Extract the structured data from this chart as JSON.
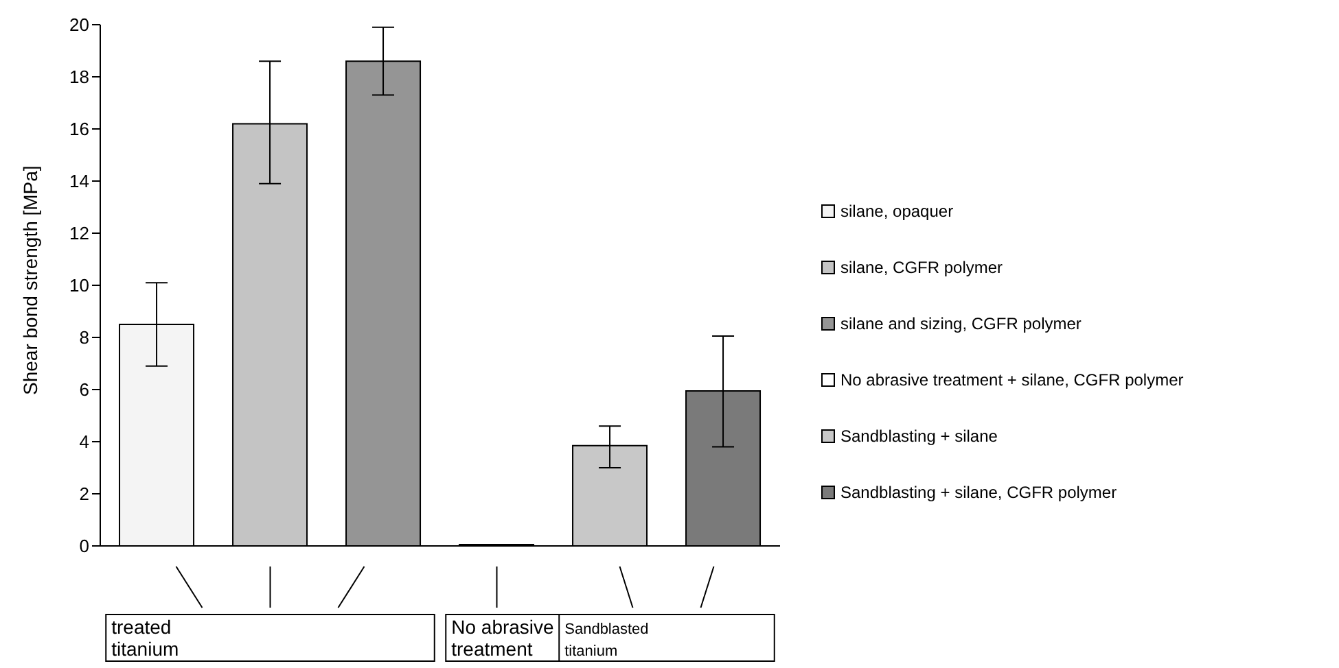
{
  "chart_data": {
    "type": "bar",
    "ylabel": "Shear bond strength [MPa]",
    "categories": [
      null,
      null,
      null,
      null,
      null,
      null
    ],
    "series": [
      {
        "name": "silane, opaquer",
        "color": "#f4f4f4",
        "values": [
          8.5,
          null,
          null,
          null,
          null,
          null
        ],
        "errors": [
          [
            6.9,
            10.1
          ],
          null,
          null,
          null,
          null,
          null
        ]
      },
      {
        "name": "silane, CGFR polymer",
        "color": "#c4c4c4",
        "values": [
          null,
          16.2,
          null,
          null,
          null,
          null
        ],
        "errors": [
          null,
          [
            13.9,
            18.6
          ],
          null,
          null,
          null,
          null
        ]
      },
      {
        "name": "silane and sizing, CGFR polymer",
        "color": "#959595",
        "values": [
          null,
          null,
          18.6,
          null,
          null,
          null
        ],
        "errors": [
          null,
          null,
          [
            17.3,
            19.9
          ],
          null,
          null,
          null
        ]
      },
      {
        "name": "No abrasive treatment + silane, CGFR polymer",
        "color": "#ffffff",
        "values": [
          null,
          null,
          null,
          0,
          null,
          null
        ]
      },
      {
        "name": "Sandblasting + silane",
        "color": "#c8c8c8",
        "values": [
          null,
          null,
          null,
          null,
          3.85,
          null
        ],
        "errors": [
          null,
          null,
          null,
          null,
          [
            3.0,
            4.6
          ],
          null
        ]
      },
      {
        "name": "Sandblasting + silane, CGFR polymer",
        "color": "#7a7a7a",
        "values": [
          null,
          null,
          null,
          null,
          null,
          5.95
        ],
        "errors": [
          null,
          null,
          null,
          null,
          null,
          [
            3.8,
            8.05
          ]
        ]
      }
    ],
    "ylim": [
      0,
      20
    ],
    "yticks": [
      0,
      2,
      4,
      6,
      8,
      10,
      12,
      14,
      16,
      18,
      20
    ],
    "grid": false,
    "legend": "right",
    "annotations": [
      "treated titanium",
      "No abrasive treatment",
      "Sandblasted titanium"
    ]
  }
}
